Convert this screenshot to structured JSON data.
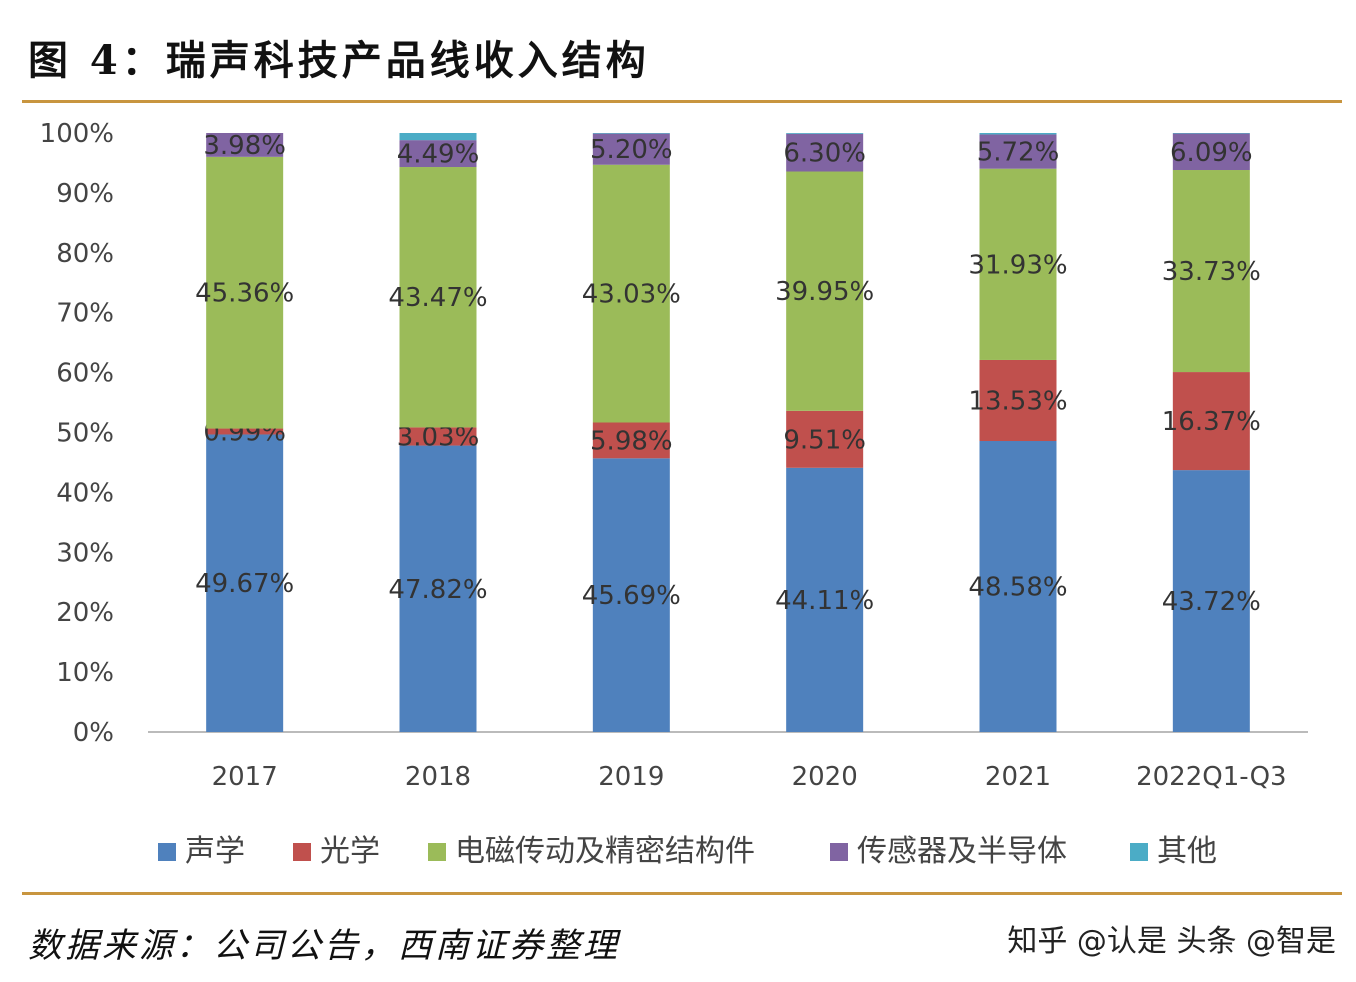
{
  "title": "图 4：瑞声科技产品线收入结构",
  "source": "数据来源：公司公告，西南证券整理",
  "watermark": "知乎 @认是 头条 @智是",
  "chart_data": {
    "type": "bar",
    "stacked": true,
    "title": "图 4：瑞声科技产品线收入结构",
    "categories": [
      "2017",
      "2018",
      "2019",
      "2020",
      "2021",
      "2022Q1-Q3"
    ],
    "ylim": [
      0,
      100
    ],
    "yticks": [
      "0%",
      "10%",
      "20%",
      "30%",
      "40%",
      "50%",
      "60%",
      "70%",
      "80%",
      "90%",
      "100%"
    ],
    "legend_position": "bottom",
    "grid": false,
    "series": [
      {
        "name": "声学",
        "color": "#4f81bd",
        "values": [
          49.67,
          47.82,
          45.69,
          44.11,
          48.58,
          43.72
        ],
        "labels": [
          "49.67%",
          "47.82%",
          "45.69%",
          "44.11%",
          "48.58%",
          "43.72%"
        ]
      },
      {
        "name": "光学",
        "color": "#c0504d",
        "values": [
          0.99,
          3.03,
          5.98,
          9.51,
          13.53,
          16.37
        ],
        "labels": [
          "0.99%",
          "3.03%",
          "5.98%",
          "9.51%",
          "13.53%",
          "16.37%"
        ]
      },
      {
        "name": "电磁传动及精密结构件",
        "color": "#9bbb59",
        "values": [
          45.36,
          43.47,
          43.03,
          39.95,
          31.93,
          33.73
        ],
        "labels": [
          "45.36%",
          "43.47%",
          "43.03%",
          "39.95%",
          "31.93%",
          "33.73%"
        ]
      },
      {
        "name": "传感器及半导体",
        "color": "#8064a2",
        "values": [
          3.98,
          4.49,
          5.2,
          6.3,
          5.72,
          6.09
        ],
        "labels": [
          "3.98%",
          "4.49%",
          "5.20%",
          "6.30%",
          "5.72%",
          "6.09%"
        ]
      },
      {
        "name": "其他",
        "color": "#4bacc6",
        "values": [
          0,
          1.19,
          0.1,
          0.13,
          0.24,
          0.09
        ],
        "labels": []
      }
    ]
  }
}
